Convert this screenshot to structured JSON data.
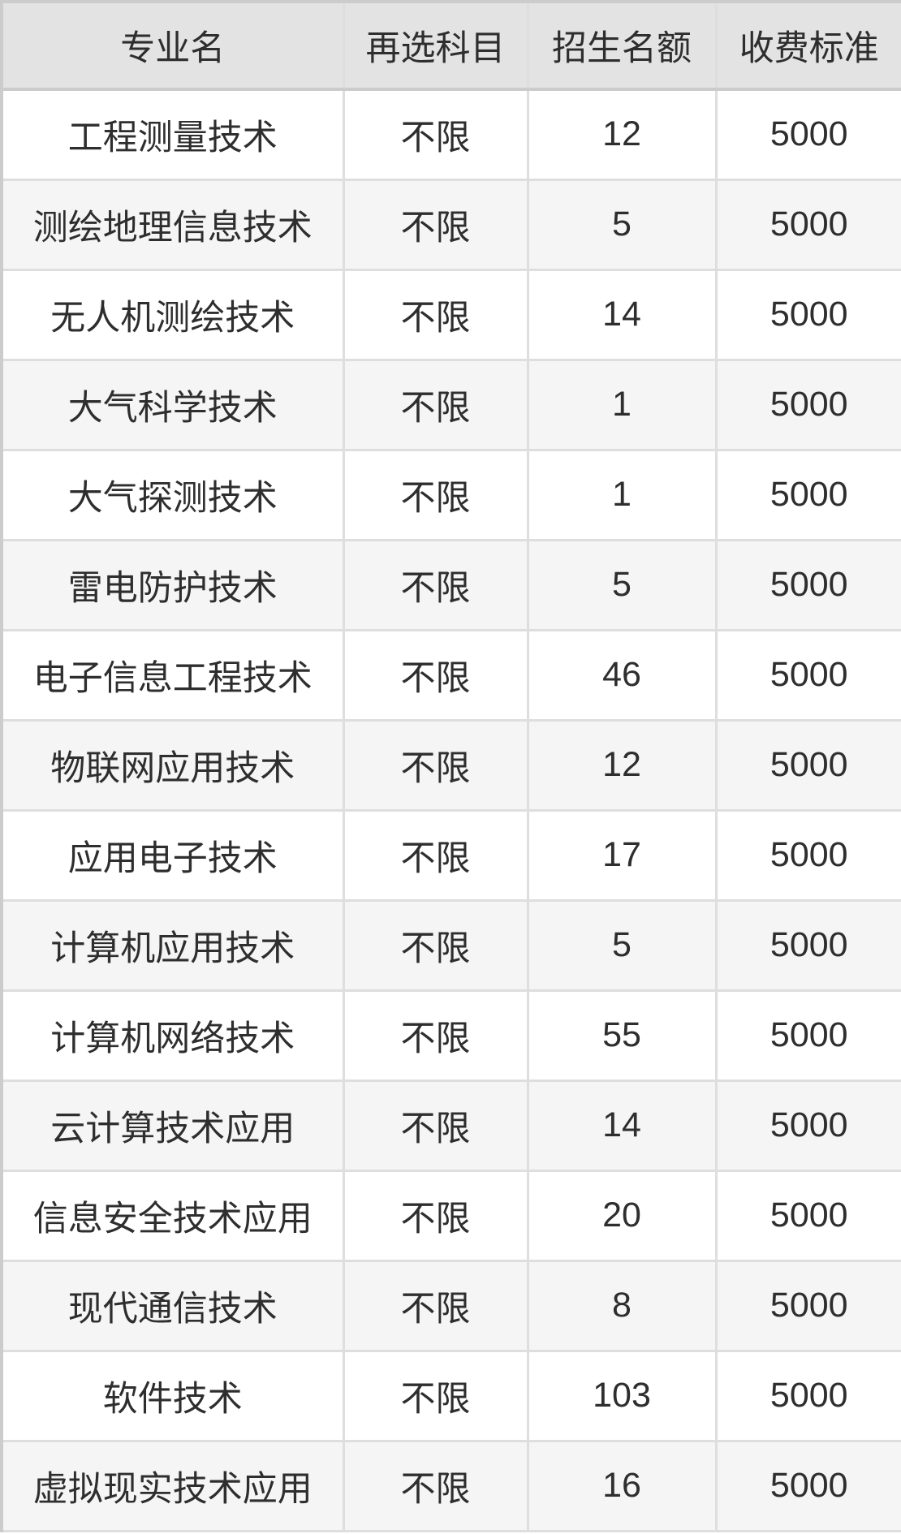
{
  "chart_data": {
    "type": "table",
    "columns": [
      "专业名",
      "再选科目",
      "招生名额",
      "收费标准"
    ],
    "rows": [
      [
        "工程测量技术",
        "不限",
        "12",
        "5000"
      ],
      [
        "测绘地理信息技术",
        "不限",
        "5",
        "5000"
      ],
      [
        "无人机测绘技术",
        "不限",
        "14",
        "5000"
      ],
      [
        "大气科学技术",
        "不限",
        "1",
        "5000"
      ],
      [
        "大气探测技术",
        "不限",
        "1",
        "5000"
      ],
      [
        "雷电防护技术",
        "不限",
        "5",
        "5000"
      ],
      [
        "电子信息工程技术",
        "不限",
        "46",
        "5000"
      ],
      [
        "物联网应用技术",
        "不限",
        "12",
        "5000"
      ],
      [
        "应用电子技术",
        "不限",
        "17",
        "5000"
      ],
      [
        "计算机应用技术",
        "不限",
        "5",
        "5000"
      ],
      [
        "计算机网络技术",
        "不限",
        "55",
        "5000"
      ],
      [
        "云计算技术应用",
        "不限",
        "14",
        "5000"
      ],
      [
        "信息安全技术应用",
        "不限",
        "20",
        "5000"
      ],
      [
        "现代通信技术",
        "不限",
        "8",
        "5000"
      ],
      [
        "软件技术",
        "不限",
        "103",
        "5000"
      ],
      [
        "虚拟现实技术应用",
        "不限",
        "16",
        "5000"
      ]
    ]
  },
  "colors": {
    "header_bg": "#e3e3e3",
    "row_bg": "#ffffff",
    "row_alt_bg": "#f5f5f5",
    "grid_border": "#dedede",
    "outer_border": "#cccccc",
    "text": "#2e2e2e"
  }
}
